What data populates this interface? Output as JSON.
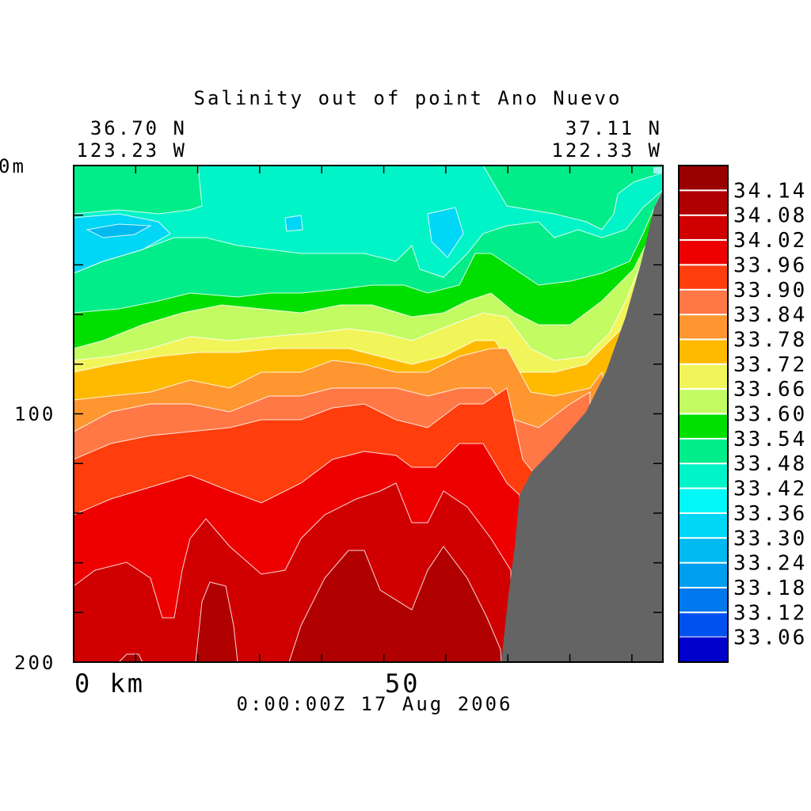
{
  "chart_data": {
    "type": "heatmap",
    "title": "Salinity out of point Ano Nuevo",
    "start_position": {
      "lat": "36.70 N",
      "lon": "123.23 W"
    },
    "end_position": {
      "lat": "37.11 N",
      "lon": "122.33 W"
    },
    "timestamp": "0:00:00Z  17 Aug 2006",
    "x_axis": {
      "label": "km",
      "ticks": [
        {
          "value": 0,
          "label": "0 km"
        },
        {
          "value": 50,
          "label": "50"
        }
      ],
      "range": [
        0,
        95
      ]
    },
    "y_axis": {
      "ticks": [
        {
          "value": 0,
          "label": "0m"
        },
        {
          "value": 100,
          "label": "100"
        },
        {
          "value": 200,
          "label": "200"
        }
      ],
      "range": [
        0,
        200
      ],
      "inverted": true
    },
    "colorbar": {
      "levels": [
        {
          "label": "34.14",
          "color": "#b00000"
        },
        {
          "label": "34.08",
          "color": "#d10000"
        },
        {
          "label": "34.02",
          "color": "#ef0000"
        },
        {
          "label": "33.96",
          "color": "#ff3d0d"
        },
        {
          "label": "33.90",
          "color": "#ff7845"
        },
        {
          "label": "33.84",
          "color": "#ff9630"
        },
        {
          "label": "33.78",
          "color": "#ffba00"
        },
        {
          "label": "33.72",
          "color": "#f2f55a"
        },
        {
          "label": "33.66",
          "color": "#c3fb63"
        },
        {
          "label": "33.60",
          "color": "#00e000"
        },
        {
          "label": "33.54",
          "color": "#00ed8a"
        },
        {
          "label": "33.48",
          "color": "#00f4c8"
        },
        {
          "label": "33.42",
          "color": "#00f8f8"
        },
        {
          "label": "33.36",
          "color": "#00d6f5"
        },
        {
          "label": "33.30",
          "color": "#00baf0"
        },
        {
          "label": "33.24",
          "color": "#009eee"
        },
        {
          "label": "33.18",
          "color": "#0079ee"
        },
        {
          "label": "33.12",
          "color": "#0050f0"
        },
        {
          "label": "33.06",
          "color": "#0024e0"
        }
      ],
      "top_color": "#980000",
      "bottom_color": "#0000cc"
    },
    "land_color": "#646464",
    "field_bands": [
      {
        "level_index": 10,
        "color": "#00ed8a"
      },
      {
        "level_index": 11,
        "color": "#00f4c8"
      },
      {
        "level_index": 13,
        "color": "#00d6f5"
      },
      {
        "level_index": 9,
        "color": "#00e000"
      },
      {
        "level_index": 8,
        "color": "#c3fb63"
      },
      {
        "level_index": 7,
        "color": "#f2f55a"
      },
      {
        "level_index": 6,
        "color": "#ffba00"
      },
      {
        "level_index": 5,
        "color": "#ff9630"
      },
      {
        "level_index": 4,
        "color": "#ff7845"
      },
      {
        "level_index": 3,
        "color": "#ff3d0d"
      },
      {
        "level_index": 2,
        "color": "#ef0000"
      },
      {
        "level_index": 1,
        "color": "#d10000"
      },
      {
        "level_index": 0,
        "color": "#b00000"
      }
    ]
  }
}
